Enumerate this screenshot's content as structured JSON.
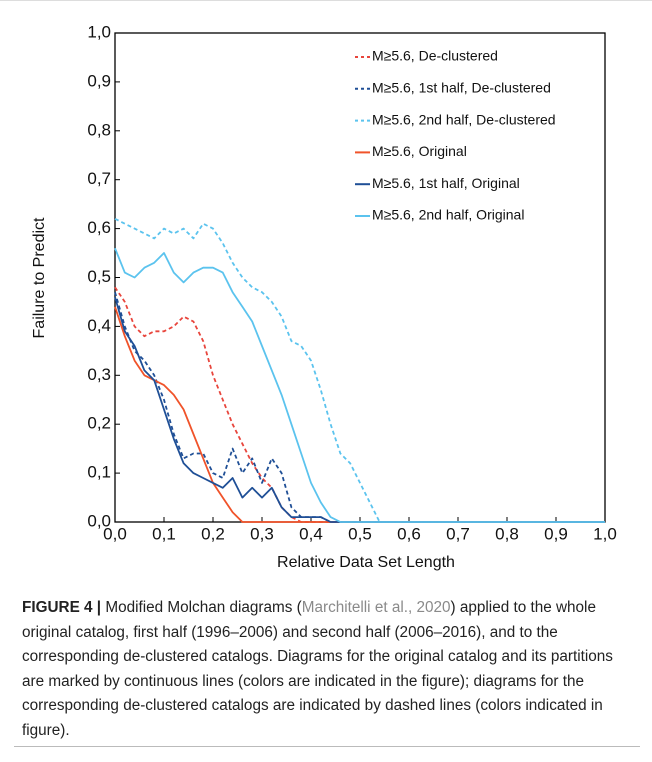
{
  "chart_data": {
    "type": "line",
    "xlabel": "Relative Data Set Length",
    "ylabel": "Failure to Predict",
    "xlim": [
      0,
      1
    ],
    "ylim": [
      0,
      1
    ],
    "xticks": [
      {
        "value": 0,
        "label": "0,0"
      },
      {
        "value": 0.1,
        "label": "0,1"
      },
      {
        "value": 0.2,
        "label": "0,2"
      },
      {
        "value": 0.3,
        "label": "0,3"
      },
      {
        "value": 0.4,
        "label": "0,4"
      },
      {
        "value": 0.5,
        "label": "0,5"
      },
      {
        "value": 0.6,
        "label": "0,6"
      },
      {
        "value": 0.7,
        "label": "0,7"
      },
      {
        "value": 0.8,
        "label": "0,8"
      },
      {
        "value": 0.9,
        "label": "0,9"
      },
      {
        "value": 1,
        "label": "1,0"
      }
    ],
    "yticks": [
      {
        "value": 0,
        "label": "0,0"
      },
      {
        "value": 0.1,
        "label": "0,1"
      },
      {
        "value": 0.2,
        "label": "0,2"
      },
      {
        "value": 0.3,
        "label": "0,3"
      },
      {
        "value": 0.4,
        "label": "0,4"
      },
      {
        "value": 0.5,
        "label": "0,5"
      },
      {
        "value": 0.6,
        "label": "0,6"
      },
      {
        "value": 0.7,
        "label": "0,7"
      },
      {
        "value": 0.8,
        "label": "0,8"
      },
      {
        "value": 0.9,
        "label": "0,9"
      },
      {
        "value": 1,
        "label": "1,0"
      }
    ],
    "grid": false,
    "legend": "top-right",
    "series": [
      {
        "name": "M≥5.6, De-clustered",
        "color": "#e8453c",
        "dashed": true,
        "x": [
          0,
          0.02,
          0.04,
          0.06,
          0.08,
          0.1,
          0.12,
          0.14,
          0.16,
          0.18,
          0.2,
          0.22,
          0.24,
          0.26,
          0.28,
          0.3,
          0.32,
          0.34,
          0.36,
          0.38,
          0.4,
          1
        ],
        "values": [
          0.48,
          0.45,
          0.4,
          0.38,
          0.39,
          0.39,
          0.4,
          0.42,
          0.41,
          0.37,
          0.3,
          0.25,
          0.2,
          0.16,
          0.12,
          0.09,
          0.07,
          0.03,
          0.01,
          0,
          0,
          0
        ]
      },
      {
        "name": "M≥5.6, 1st half, De-clustered",
        "color": "#1f4f96",
        "dashed": true,
        "x": [
          0,
          0.02,
          0.04,
          0.06,
          0.08,
          0.1,
          0.12,
          0.14,
          0.16,
          0.18,
          0.2,
          0.22,
          0.24,
          0.26,
          0.28,
          0.3,
          0.32,
          0.34,
          0.36,
          0.38,
          0.4,
          0.42,
          0.44,
          1
        ],
        "values": [
          0.47,
          0.4,
          0.35,
          0.33,
          0.3,
          0.25,
          0.18,
          0.13,
          0.14,
          0.14,
          0.1,
          0.09,
          0.15,
          0.1,
          0.13,
          0.08,
          0.13,
          0.1,
          0.03,
          0.01,
          0.01,
          0.01,
          0,
          0
        ]
      },
      {
        "name": "M≥5.6, 2nd half, De-clustered",
        "color": "#5bc3ee",
        "dashed": true,
        "x": [
          0,
          0.02,
          0.04,
          0.06,
          0.08,
          0.1,
          0.12,
          0.14,
          0.16,
          0.18,
          0.2,
          0.22,
          0.24,
          0.26,
          0.28,
          0.3,
          0.32,
          0.34,
          0.36,
          0.38,
          0.4,
          0.42,
          0.44,
          0.46,
          0.48,
          0.5,
          0.52,
          0.54,
          1
        ],
        "values": [
          0.62,
          0.61,
          0.6,
          0.59,
          0.58,
          0.6,
          0.59,
          0.6,
          0.58,
          0.61,
          0.6,
          0.57,
          0.53,
          0.5,
          0.48,
          0.47,
          0.45,
          0.42,
          0.37,
          0.36,
          0.33,
          0.27,
          0.2,
          0.14,
          0.12,
          0.08,
          0.04,
          0,
          0
        ]
      },
      {
        "name": "M≥5.6, Original",
        "color": "#f0532a",
        "dashed": false,
        "x": [
          0,
          0.02,
          0.04,
          0.06,
          0.08,
          0.1,
          0.12,
          0.14,
          0.16,
          0.18,
          0.2,
          0.22,
          0.24,
          0.26,
          1
        ],
        "values": [
          0.44,
          0.38,
          0.33,
          0.3,
          0.29,
          0.28,
          0.26,
          0.23,
          0.18,
          0.13,
          0.08,
          0.05,
          0.02,
          0,
          0
        ]
      },
      {
        "name": "M≥5.6, 1st half, Original",
        "color": "#1f4f96",
        "dashed": false,
        "x": [
          0,
          0.02,
          0.04,
          0.06,
          0.08,
          0.1,
          0.12,
          0.14,
          0.16,
          0.18,
          0.2,
          0.22,
          0.24,
          0.26,
          0.28,
          0.3,
          0.32,
          0.34,
          0.36,
          0.38,
          0.4,
          0.42,
          0.44,
          1
        ],
        "values": [
          0.46,
          0.39,
          0.36,
          0.31,
          0.29,
          0.23,
          0.17,
          0.12,
          0.1,
          0.09,
          0.08,
          0.07,
          0.09,
          0.05,
          0.07,
          0.05,
          0.07,
          0.03,
          0.01,
          0.01,
          0.01,
          0.01,
          0,
          0
        ]
      },
      {
        "name": "M≥5.6, 2nd half, Original",
        "color": "#5bc3ee",
        "dashed": false,
        "x": [
          0,
          0.02,
          0.04,
          0.06,
          0.08,
          0.1,
          0.12,
          0.14,
          0.16,
          0.18,
          0.2,
          0.22,
          0.24,
          0.26,
          0.28,
          0.3,
          0.32,
          0.34,
          0.36,
          0.38,
          0.4,
          0.42,
          0.44,
          0.46,
          1
        ],
        "values": [
          0.56,
          0.51,
          0.5,
          0.52,
          0.53,
          0.55,
          0.51,
          0.49,
          0.51,
          0.52,
          0.52,
          0.51,
          0.47,
          0.44,
          0.41,
          0.36,
          0.31,
          0.26,
          0.2,
          0.14,
          0.08,
          0.04,
          0.01,
          0,
          0
        ]
      }
    ]
  },
  "caption": {
    "label": "FIGURE 4 |",
    "text_before_link": " Modified Molchan diagrams (",
    "link": "Marchitelli et al., 2020",
    "text_after_link": ") applied to the whole original catalog, first half (1996–2006) and second half (2006–2016), and to the corresponding de-clustered catalogs. Diagrams for the original catalog and its partitions are marked by continuous lines (colors are indicated in the figure); diagrams for the corresponding de-clustered catalogs are indicated by dashed lines (colors indicated in figure)."
  }
}
